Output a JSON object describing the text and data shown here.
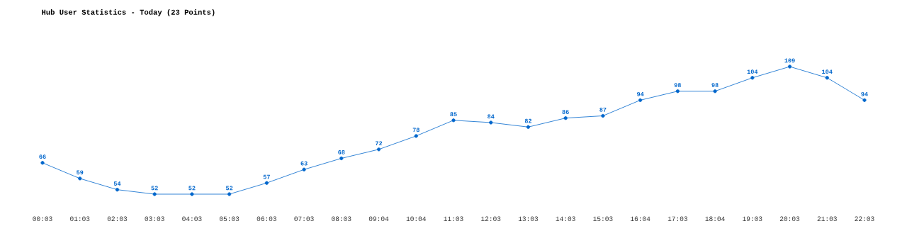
{
  "chart_data": {
    "type": "line",
    "title": "Hub User Statistics - Today (23 Points)",
    "categories": [
      "00:03",
      "01:03",
      "02:03",
      "03:03",
      "04:03",
      "05:03",
      "06:03",
      "07:03",
      "08:03",
      "09:04",
      "10:04",
      "11:03",
      "12:03",
      "13:03",
      "14:03",
      "15:03",
      "16:04",
      "17:03",
      "18:04",
      "19:03",
      "20:03",
      "21:03",
      "22:03"
    ],
    "values": [
      66,
      59,
      54,
      52,
      52,
      52,
      57,
      63,
      68,
      72,
      78,
      85,
      84,
      82,
      86,
      87,
      94,
      98,
      98,
      104,
      109,
      104,
      94
    ],
    "color": "#0066cc",
    "marker": "circle",
    "line_style": "solid",
    "data_labels": true
  }
}
